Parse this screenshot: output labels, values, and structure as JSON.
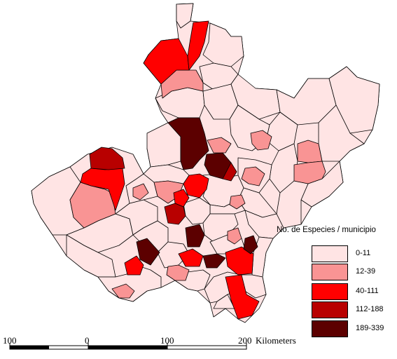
{
  "legend": {
    "title": "No. de Especies / municipio",
    "classes": [
      {
        "label": "0-11",
        "color": "#ffe4e4"
      },
      {
        "label": "12-39",
        "color": "#f99494"
      },
      {
        "label": "40-111",
        "color": "#ff0000"
      },
      {
        "label": "112-188",
        "color": "#b80000"
      },
      {
        "label": "189-339",
        "color": "#5c0000"
      }
    ]
  },
  "scale_bar": {
    "ticks": [
      "100",
      "0",
      "100",
      "200"
    ],
    "unit": "Kilometers"
  }
}
